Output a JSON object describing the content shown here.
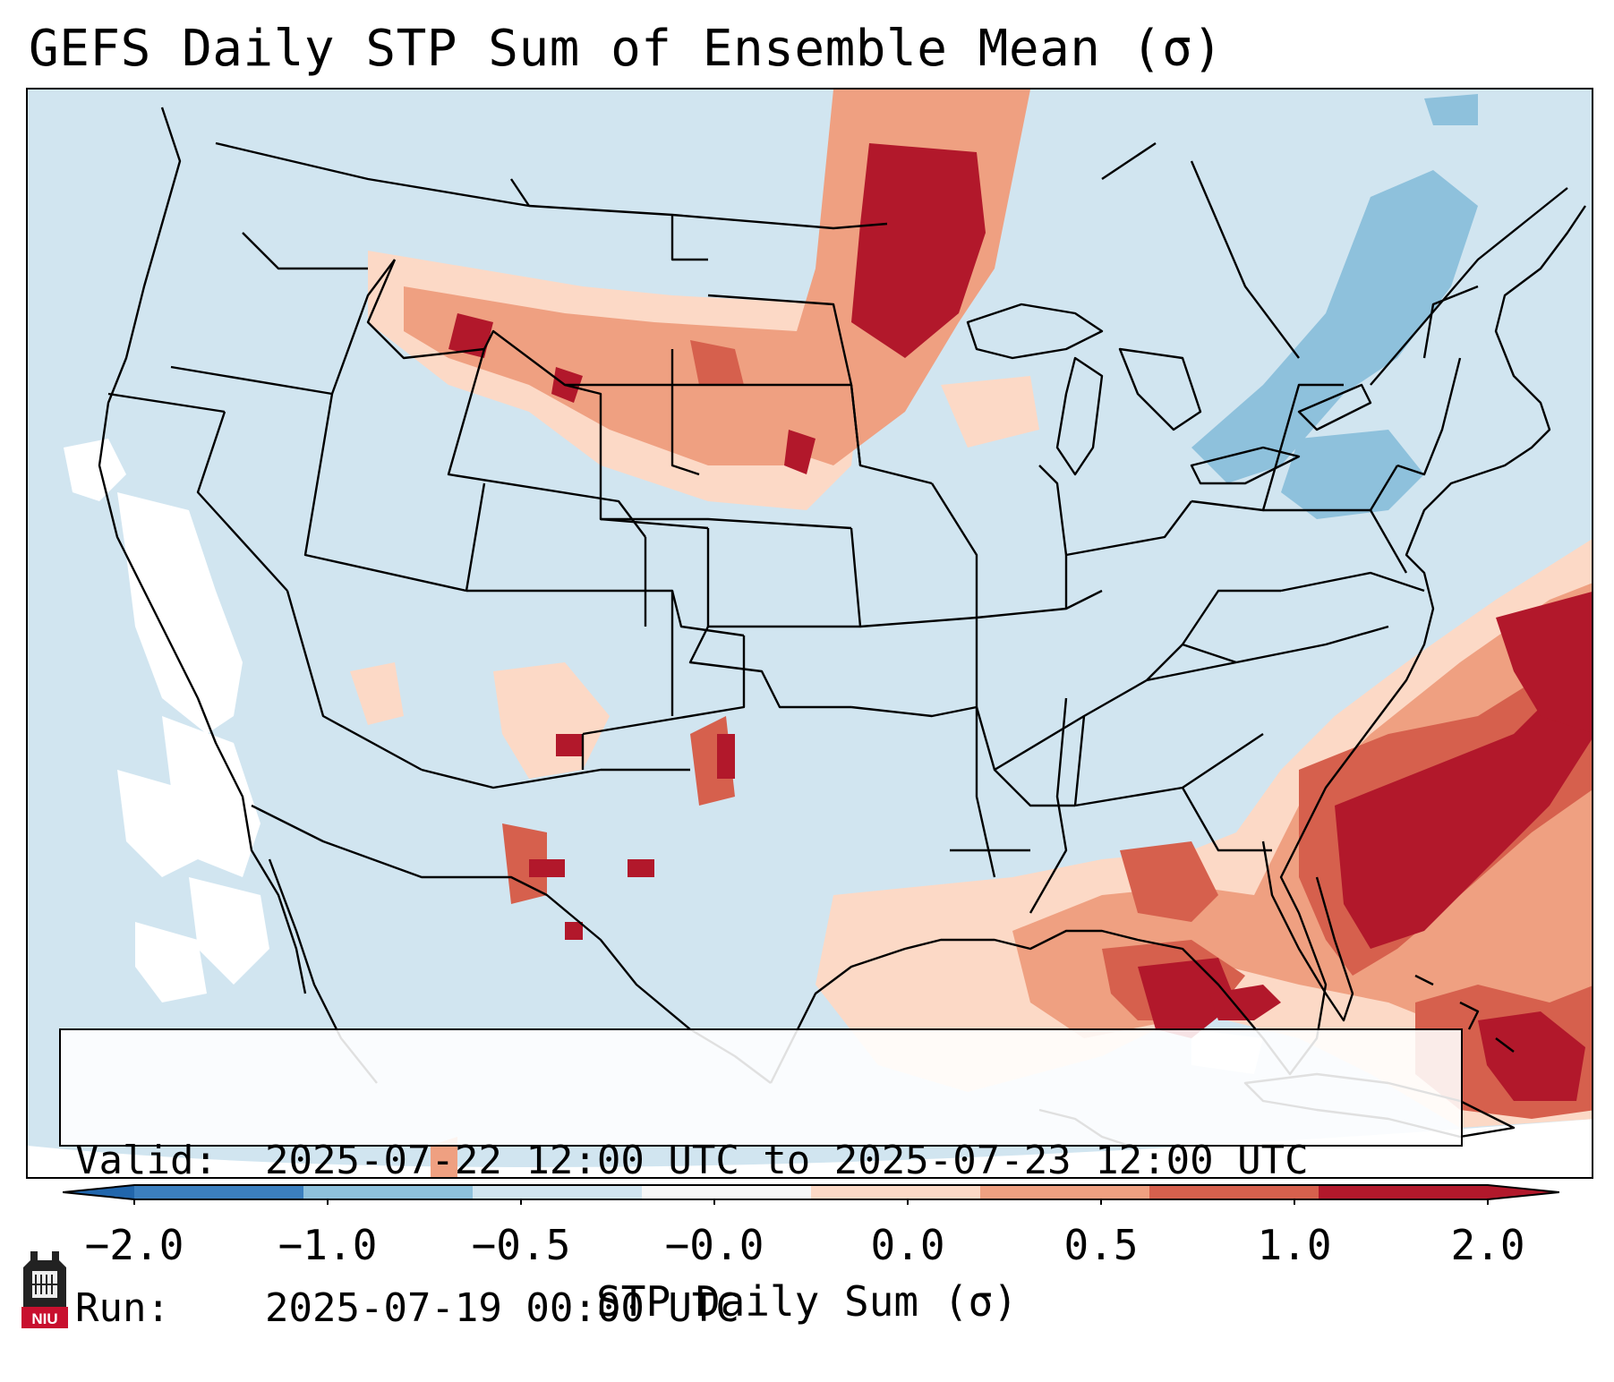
{
  "title": "GEFS Daily STP Sum of Ensemble Mean (σ)",
  "info": {
    "valid_label": "Valid:",
    "valid_value": "2025-07-22 12:00 UTC to 2025-07-23 12:00 UTC",
    "run_label": "Run:",
    "run_value": "2025-07-19 00:00 UTC"
  },
  "colorbar": {
    "label": "STP Daily Sum (σ)",
    "ticks": [
      "−2.0",
      "−1.0",
      "−0.5",
      "−0.0",
      "0.0",
      "0.5",
      "1.0",
      "2.0"
    ],
    "colors": [
      "#3b7fbf",
      "#8ec1dc",
      "#d1e5f0",
      "#f7f7f7",
      "#fcd9c6",
      "#efa081",
      "#d6604d",
      "#b2182b"
    ]
  },
  "map": {
    "region": "Contiguous United States",
    "features": [
      "state-borders",
      "country-borders",
      "coastlines",
      "stp-anomaly-field"
    ]
  },
  "logo": {
    "text": "NIU"
  }
}
